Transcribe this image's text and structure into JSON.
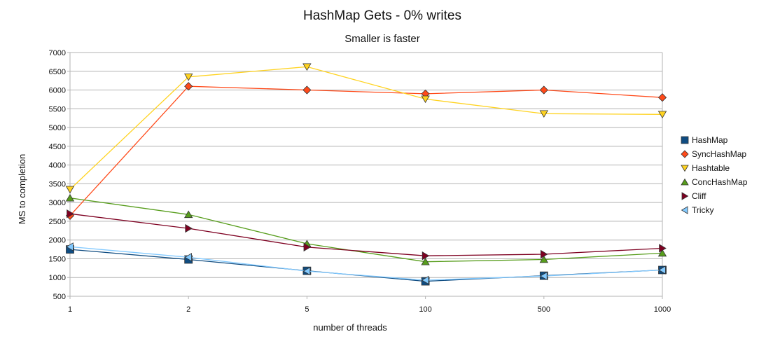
{
  "chart_data": {
    "type": "line",
    "title": "HashMap Gets - 0% writes",
    "subtitle": "Smaller is faster",
    "xlabel": "number of threads",
    "ylabel": "MS to completion",
    "categories": [
      "1",
      "2",
      "5",
      "100",
      "500",
      "1000"
    ],
    "ylim": [
      500,
      7000
    ],
    "yticks": [
      500,
      1000,
      1500,
      2000,
      2500,
      3000,
      3500,
      4000,
      4500,
      5000,
      5500,
      6000,
      6500,
      7000
    ],
    "grid": true,
    "legend_position": "right",
    "series": [
      {
        "name": "HashMap",
        "color": "#0f4c81",
        "marker": "square",
        "values": [
          1750,
          1480,
          1180,
          900,
          1050,
          1200
        ]
      },
      {
        "name": "SyncHashMap",
        "color": "#ff4a1a",
        "marker": "diamond",
        "values": [
          2650,
          6100,
          6000,
          5900,
          6000,
          5800
        ]
      },
      {
        "name": "Hashtable",
        "color": "#ffd320",
        "marker": "triangle-down",
        "values": [
          3350,
          6350,
          6620,
          5760,
          5370,
          5350
        ]
      },
      {
        "name": "ConcHashMap",
        "color": "#579d1c",
        "marker": "triangle-up",
        "values": [
          3120,
          2680,
          1900,
          1420,
          1480,
          1650
        ]
      },
      {
        "name": "Cliff",
        "color": "#7e0021",
        "marker": "triangle-right",
        "values": [
          2700,
          2310,
          1810,
          1580,
          1620,
          1780
        ]
      },
      {
        "name": "Tricky",
        "color": "#83caff",
        "marker": "triangle-left",
        "values": [
          1820,
          1540,
          1170,
          930,
          1040,
          1200
        ]
      }
    ]
  }
}
